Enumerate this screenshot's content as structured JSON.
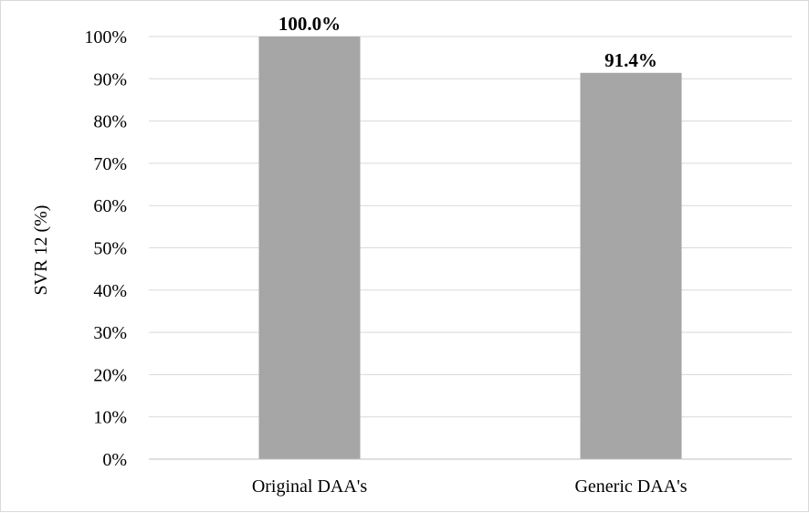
{
  "chart_data": {
    "type": "bar",
    "categories": [
      "Original DAA's",
      "Generic DAA's"
    ],
    "values": [
      100.0,
      91.4
    ],
    "data_labels": [
      "100.0%",
      "91.4%"
    ],
    "ylabel": "SVR 12 (%)",
    "ylim": [
      0,
      100
    ],
    "yticks": [
      "0%",
      "10%",
      "20%",
      "30%",
      "40%",
      "50%",
      "60%",
      "70%",
      "80%",
      "90%",
      "100%"
    ],
    "grid": true,
    "legend": "none",
    "colors": {
      "bar": "#a6a6a6",
      "grid": "#d9d9d9",
      "axis": "#bfbfbf"
    }
  }
}
